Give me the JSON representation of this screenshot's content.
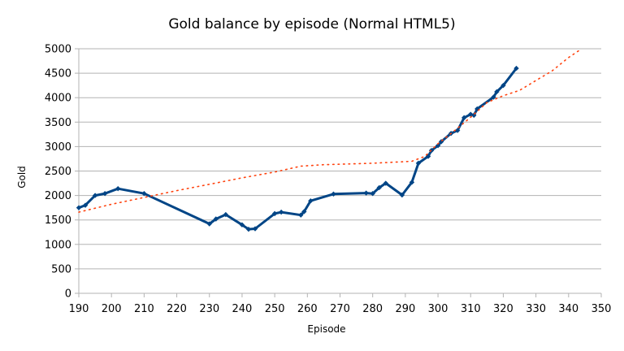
{
  "chart_data": {
    "type": "line",
    "title": "Gold balance by episode (Normal HTML5)",
    "xlabel": "Episode",
    "ylabel": "Gold",
    "xlim": [
      190,
      350
    ],
    "ylim": [
      0,
      5000
    ],
    "xticks": [
      190,
      200,
      210,
      220,
      230,
      240,
      250,
      260,
      270,
      280,
      290,
      300,
      310,
      320,
      330,
      340,
      350
    ],
    "yticks": [
      0,
      500,
      1000,
      1500,
      2000,
      2500,
      3000,
      3500,
      4000,
      4500,
      5000
    ],
    "grid": true,
    "legend": "none",
    "series": [
      {
        "color": "#004586",
        "style": "solid-markers",
        "points": [
          [
            190,
            1750
          ],
          [
            192,
            1800
          ],
          [
            195,
            2000
          ],
          [
            198,
            2040
          ],
          [
            202,
            2140
          ],
          [
            210,
            2040
          ],
          [
            230,
            1420
          ],
          [
            232,
            1520
          ],
          [
            235,
            1610
          ],
          [
            240,
            1400
          ],
          [
            242,
            1310
          ],
          [
            244,
            1320
          ],
          [
            250,
            1630
          ],
          [
            252,
            1660
          ],
          [
            258,
            1600
          ],
          [
            259,
            1670
          ],
          [
            261,
            1890
          ],
          [
            268,
            2030
          ],
          [
            278,
            2050
          ],
          [
            280,
            2040
          ],
          [
            282,
            2160
          ],
          [
            284,
            2250
          ],
          [
            289,
            2010
          ],
          [
            292,
            2270
          ],
          [
            294,
            2660
          ],
          [
            297,
            2800
          ],
          [
            298,
            2920
          ],
          [
            300,
            3020
          ],
          [
            301,
            3100
          ],
          [
            304,
            3270
          ],
          [
            306,
            3330
          ],
          [
            308,
            3590
          ],
          [
            310,
            3660
          ],
          [
            311,
            3640
          ],
          [
            312,
            3770
          ],
          [
            317,
            4010
          ],
          [
            318,
            4120
          ],
          [
            320,
            4250
          ],
          [
            324,
            4600
          ]
        ]
      },
      {
        "color": "#ff420e",
        "style": "dotted-trend",
        "points": [
          [
            190,
            1660
          ],
          [
            200,
            1820
          ],
          [
            210,
            1960
          ],
          [
            220,
            2100
          ],
          [
            230,
            2230
          ],
          [
            240,
            2360
          ],
          [
            250,
            2480
          ],
          [
            258,
            2600
          ],
          [
            265,
            2630
          ],
          [
            280,
            2660
          ],
          [
            292,
            2700
          ],
          [
            296,
            2800
          ],
          [
            300,
            3060
          ],
          [
            305,
            3320
          ],
          [
            310,
            3600
          ],
          [
            315,
            3900
          ],
          [
            320,
            4040
          ],
          [
            325,
            4150
          ],
          [
            330,
            4350
          ],
          [
            335,
            4550
          ],
          [
            340,
            4820
          ],
          [
            344,
            5000
          ]
        ]
      }
    ]
  }
}
